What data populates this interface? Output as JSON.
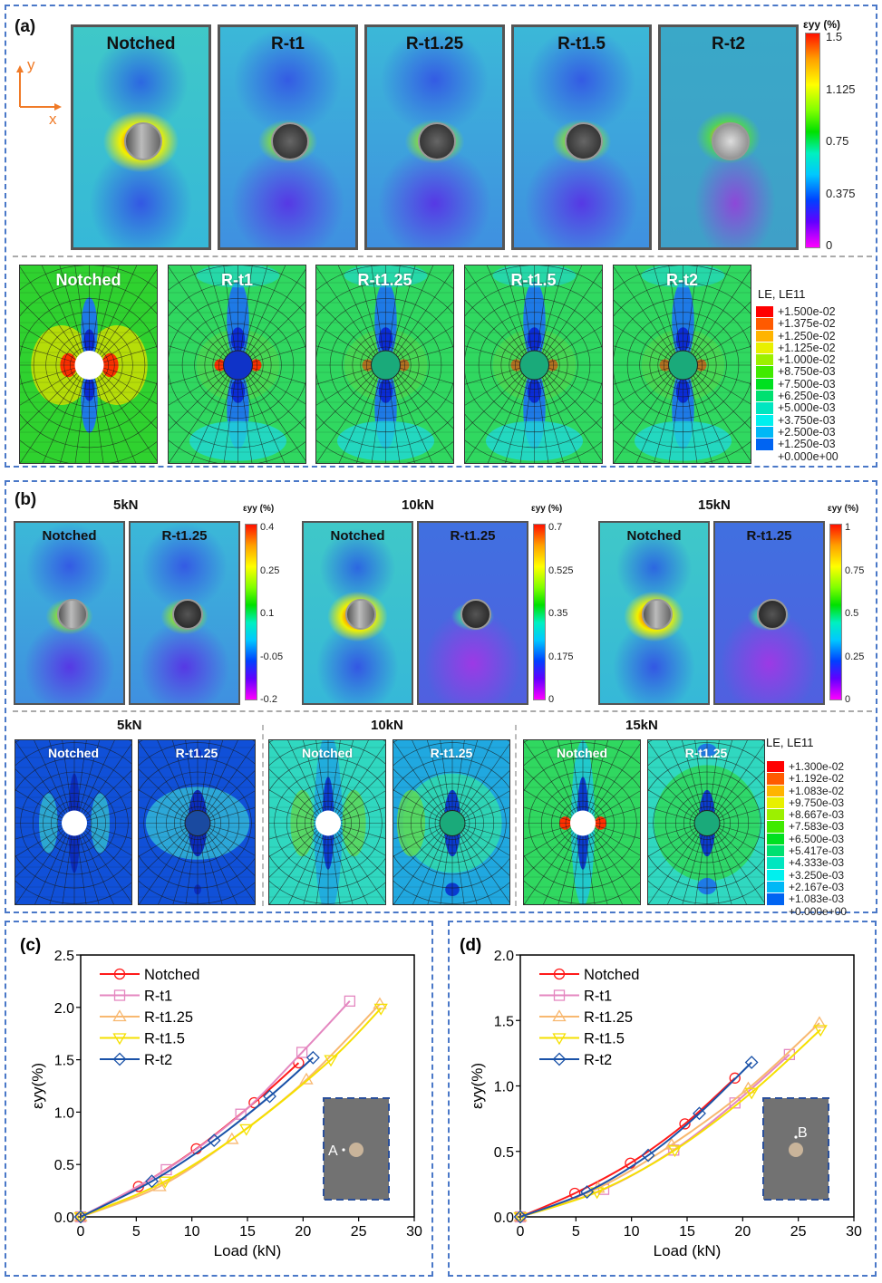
{
  "panel_a": {
    "label": "(a)",
    "axes": {
      "y": "y",
      "x": "x"
    },
    "dic_specimens": [
      "Notched",
      "R-t1",
      "R-t1.25",
      "R-t1.5",
      "R-t2"
    ],
    "dic_colorbar": {
      "title": "εyy (%)",
      "ticks": [
        "1.5",
        "1.125",
        "0.75",
        "0.375",
        "0"
      ]
    },
    "fe_specimens": [
      "Notched",
      "R-t1",
      "R-t1.25",
      "R-t1.5",
      "R-t2"
    ],
    "fe_legend": {
      "title": "LE, LE11",
      "values": [
        "+1.500e-02",
        "+1.375e-02",
        "+1.250e-02",
        "+1.125e-02",
        "+1.000e-02",
        "+8.750e-03",
        "+7.500e-03",
        "+6.250e-03",
        "+5.000e-03",
        "+3.750e-03",
        "+2.500e-03",
        "+1.250e-03",
        "+0.000e+00"
      ],
      "colors": [
        "#ff0000",
        "#ff5a00",
        "#ffb400",
        "#e8f000",
        "#9cf000",
        "#40ea00",
        "#00e020",
        "#00e070",
        "#00e6c0",
        "#00f0ee",
        "#00b8f6",
        "#0064f2",
        "#0000f0"
      ]
    }
  },
  "panel_b": {
    "label": "(b)",
    "dic_groups": [
      {
        "load": "5kN",
        "specimens": [
          "Notched",
          "R-t1.25"
        ],
        "colorbar": {
          "title": "εyy (%)",
          "ticks": [
            "0.4",
            "0.25",
            "0.1",
            "-0.05",
            "-0.2"
          ]
        }
      },
      {
        "load": "10kN",
        "specimens": [
          "Notched",
          "R-t1.25"
        ],
        "colorbar": {
          "title": "εyy (%)",
          "ticks": [
            "0.7",
            "0.525",
            "0.35",
            "0.175",
            "0"
          ]
        }
      },
      {
        "load": "15kN",
        "specimens": [
          "Notched",
          "R-t1.25"
        ],
        "colorbar": {
          "title": "εyy (%)",
          "ticks": [
            "1",
            "0.75",
            "0.5",
            "0.25",
            "0"
          ]
        }
      }
    ],
    "fe_groups": [
      {
        "load": "5kN",
        "specimens": [
          "Notched",
          "R-t1.25"
        ]
      },
      {
        "load": "10kN",
        "specimens": [
          "Notched",
          "R-t1.25"
        ]
      },
      {
        "load": "15kN",
        "specimens": [
          "Notched",
          "R-t1.25"
        ]
      }
    ],
    "fe_legend": {
      "title": "LE, LE11",
      "values": [
        "+1.300e-02",
        "+1.192e-02",
        "+1.083e-02",
        "+9.750e-03",
        "+8.667e-03",
        "+7.583e-03",
        "+6.500e-03",
        "+5.417e-03",
        "+4.333e-03",
        "+3.250e-03",
        "+2.167e-03",
        "+1.083e-03",
        "+0.000e+00"
      ],
      "colors": [
        "#ff0000",
        "#ff5a00",
        "#ffb400",
        "#e8f000",
        "#9cf000",
        "#40ea00",
        "#00e020",
        "#00e070",
        "#00e6c0",
        "#00f0ee",
        "#00b8f6",
        "#0064f2",
        "#0000f0"
      ]
    }
  },
  "chart_data": [
    {
      "panel": "(c)",
      "type": "line",
      "title": "",
      "xlabel": "Load (kN)",
      "ylabel": "εyy(%)",
      "xlim": [
        0,
        30
      ],
      "ylim": [
        0,
        2.5
      ],
      "xticks": [
        "0",
        "5",
        "10",
        "15",
        "20",
        "25",
        "30"
      ],
      "yticks": [
        "0.0",
        "0.5",
        "1.0",
        "1.5",
        "2.0",
        "2.5"
      ],
      "legend_position": "top-left",
      "inset": {
        "point_label": "A",
        "location": "left of hole"
      },
      "series": [
        {
          "name": "Notched",
          "color": "#ff1a1a",
          "marker": "circle",
          "x": [
            0,
            5.2,
            10.4,
            15.6,
            19.6
          ],
          "y": [
            0,
            0.29,
            0.65,
            1.09,
            1.47
          ]
        },
        {
          "name": "R-t1",
          "color": "#e487c0",
          "marker": "square",
          "x": [
            0,
            7.7,
            14.4,
            19.9,
            24.2
          ],
          "y": [
            0,
            0.45,
            0.98,
            1.57,
            2.06
          ]
        },
        {
          "name": "R-t1.25",
          "color": "#f8b870",
          "marker": "triangle-up",
          "x": [
            0,
            7.1,
            13.6,
            20.3,
            26.9
          ],
          "y": [
            0,
            0.29,
            0.74,
            1.31,
            2.03
          ]
        },
        {
          "name": "R-t1.5",
          "color": "#f5e000",
          "marker": "triangle-down",
          "x": [
            0,
            7.6,
            14.9,
            22.5,
            27.0
          ],
          "y": [
            0,
            0.34,
            0.84,
            1.5,
            1.99
          ]
        },
        {
          "name": "R-t2",
          "color": "#1a52a8",
          "marker": "diamond",
          "x": [
            0,
            6.4,
            12.0,
            17.0,
            20.9
          ],
          "y": [
            0,
            0.34,
            0.73,
            1.15,
            1.52
          ]
        }
      ]
    },
    {
      "panel": "(d)",
      "type": "line",
      "title": "",
      "xlabel": "Load (kN)",
      "ylabel": "εyy(%)",
      "xlim": [
        0,
        30
      ],
      "ylim": [
        0,
        2.0
      ],
      "xticks": [
        "0",
        "5",
        "10",
        "15",
        "20",
        "25",
        "30"
      ],
      "yticks": [
        "0.0",
        "0.5",
        "1.0",
        "1.5",
        "2.0"
      ],
      "legend_position": "top-left",
      "inset": {
        "point_label": "B",
        "location": "above hole"
      },
      "series": [
        {
          "name": "Notched",
          "color": "#ff1a1a",
          "marker": "circle",
          "x": [
            0,
            4.9,
            9.9,
            14.8,
            19.3
          ],
          "y": [
            0,
            0.18,
            0.41,
            0.71,
            1.06
          ]
        },
        {
          "name": "R-t1",
          "color": "#e487c0",
          "marker": "square",
          "x": [
            0,
            7.5,
            13.8,
            19.3,
            24.2
          ],
          "y": [
            0,
            0.21,
            0.51,
            0.87,
            1.24
          ]
        },
        {
          "name": "R-t1.25",
          "color": "#f8b870",
          "marker": "triangle-up",
          "x": [
            0,
            7.0,
            13.6,
            20.5,
            26.9
          ],
          "y": [
            0,
            0.22,
            0.55,
            0.98,
            1.48
          ]
        },
        {
          "name": "R-t1.5",
          "color": "#f5e000",
          "marker": "triangle-down",
          "x": [
            0,
            6.9,
            13.9,
            20.8,
            27.0
          ],
          "y": [
            0,
            0.19,
            0.51,
            0.95,
            1.43
          ]
        },
        {
          "name": "R-t2",
          "color": "#1a52a8",
          "marker": "diamond",
          "x": [
            0,
            6.0,
            11.5,
            16.1,
            20.8
          ],
          "y": [
            0,
            0.19,
            0.47,
            0.79,
            1.18
          ]
        }
      ]
    }
  ]
}
